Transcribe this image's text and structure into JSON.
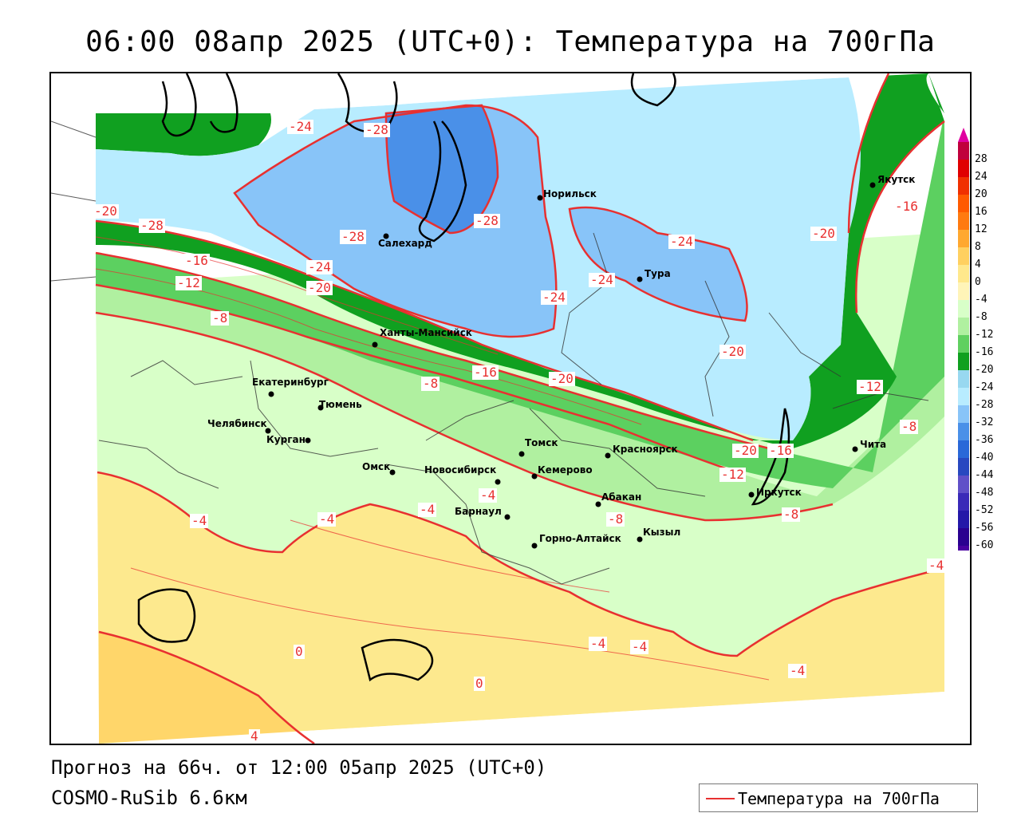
{
  "title": "06:00 08апр 2025 (UTC+0): Температура на 700гПа",
  "footer": {
    "forecast": "Прогноз на 66ч. от 12:00 05апр 2025 (UTC+0)",
    "model": "COSMO-RuSib 6.6км"
  },
  "legend": {
    "label": "Температура на 700гПа",
    "line_color": "#e83030"
  },
  "colorbar": {
    "labels": [
      "28",
      "24",
      "20",
      "16",
      "12",
      "8",
      "4",
      "0",
      "-4",
      "-8",
      "-12",
      "-16",
      "-20",
      "-24",
      "-28",
      "-32",
      "-36",
      "-40",
      "-44",
      "-48",
      "-52",
      "-56",
      "-60"
    ],
    "colors": [
      "#c0003c",
      "#e00000",
      "#f03000",
      "#ff5a00",
      "#ff7a10",
      "#ffa830",
      "#ffd060",
      "#ffe88c",
      "#fff4b8",
      "#d8ffc8",
      "#b0f0a0",
      "#60d060",
      "#10a020",
      "#98d8f0",
      "#b8ecff",
      "#88c4f8",
      "#4a90e8",
      "#2a68d8",
      "#2848c0",
      "#6050c8",
      "#3a2ab8",
      "#2418a8",
      "#2a0090",
      "#4800a0"
    ],
    "top_triangle_color": "#e000a0",
    "bottom_triangle_color": "#a020e0"
  },
  "cities": [
    {
      "name": "Якутск"
    },
    {
      "name": "Норильск"
    },
    {
      "name": "Салехард"
    },
    {
      "name": "Тура"
    },
    {
      "name": "Ханты-Мансийск"
    },
    {
      "name": "Екатеринбург"
    },
    {
      "name": "Тюмень"
    },
    {
      "name": "Челябинск"
    },
    {
      "name": "Курган"
    },
    {
      "name": "Омск"
    },
    {
      "name": "Новосибирск"
    },
    {
      "name": "Томск"
    },
    {
      "name": "Кемерово"
    },
    {
      "name": "Красноярск"
    },
    {
      "name": "Абакан"
    },
    {
      "name": "Барнаул"
    },
    {
      "name": "Горно-Алтайск"
    },
    {
      "name": "Кызыл"
    },
    {
      "name": "Иркутск"
    },
    {
      "name": "Чита"
    }
  ],
  "contour_labels": [
    "-24",
    "-28",
    "-28",
    "-28",
    "-28",
    "-20",
    "-16",
    "-12",
    "-8",
    "-24",
    "-20",
    "-24",
    "-24",
    "-24",
    "-20",
    "-20",
    "-16",
    "-16",
    "-20",
    "-12",
    "-8",
    "-8",
    "-20",
    "-16",
    "-12",
    "-8",
    "-8",
    "-4",
    "-4",
    "-4",
    "-4",
    "-4",
    "-4",
    "-4",
    "-4",
    "0",
    "0",
    "4"
  ]
}
